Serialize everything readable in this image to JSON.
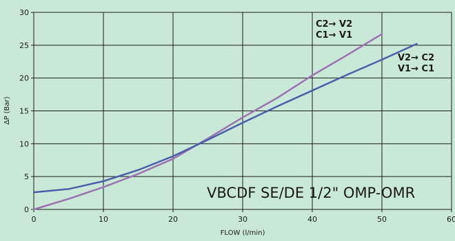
{
  "chart_data": {
    "type": "line",
    "xlabel": "FLOW (l/min)",
    "ylabel": "ΔP (Bar)",
    "xlim": [
      0,
      60
    ],
    "ylim": [
      0,
      30
    ],
    "xticks": [
      0,
      10,
      20,
      30,
      40,
      50,
      60
    ],
    "yticks": [
      0,
      5,
      10,
      15,
      20,
      25,
      30
    ],
    "grid": true,
    "annotation": "VBCDF SE/DE 1/2\" OMP-OMR",
    "series": [
      {
        "label_lines": [
          "C2→ V2",
          "C1→ V1"
        ],
        "color": "#9b72b0",
        "x": [
          0,
          5,
          10,
          15,
          20,
          25,
          30,
          35,
          40,
          45,
          50
        ],
        "y": [
          0,
          1.6,
          3.4,
          5.4,
          7.7,
          10.8,
          14.0,
          17.0,
          20.4,
          23.5,
          26.7
        ]
      },
      {
        "label_lines": [
          "V2→ C2",
          "V1→ C1"
        ],
        "color": "#4a5ea8",
        "x": [
          0,
          5,
          10,
          15,
          20,
          25,
          30,
          35,
          40,
          45,
          50,
          55
        ],
        "y": [
          2.6,
          3.1,
          4.3,
          6.0,
          8.1,
          10.6,
          13.2,
          15.7,
          18.1,
          20.5,
          22.8,
          25.2
        ]
      }
    ]
  }
}
